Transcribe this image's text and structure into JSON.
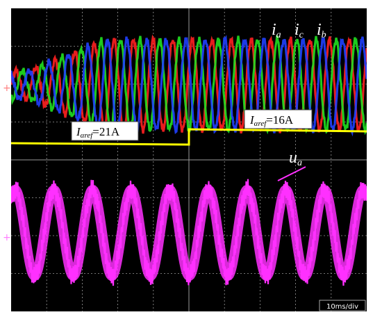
{
  "chart_data": {
    "type": "line",
    "timebase": "10ms/div",
    "upper_panel": {
      "series": [
        {
          "name": "ia",
          "color": "#ff2020",
          "phase_deg": 0
        },
        {
          "name": "ic",
          "color": "#20e020",
          "phase_deg": 120
        },
        {
          "name": "ib",
          "color": "#2040ff",
          "phase_deg": 240
        }
      ],
      "reference": {
        "color": "#ffff00",
        "segments": [
          {
            "label_main": "I",
            "label_sub": "αref",
            "label_value": "=21A"
          },
          {
            "label_main": "I",
            "label_sub": "αref",
            "label_value": "=16A"
          }
        ]
      }
    },
    "lower_panel": {
      "series": [
        {
          "name": "ua",
          "color": "#ff30ff"
        }
      ]
    },
    "label_ia_main": "i",
    "label_ia_sub": "a",
    "label_ic_main": "i",
    "label_ic_sub": "c",
    "label_ib_main": "i",
    "label_ib_sub": "b",
    "label_ua_main": "u",
    "label_ua_sub": "a"
  }
}
